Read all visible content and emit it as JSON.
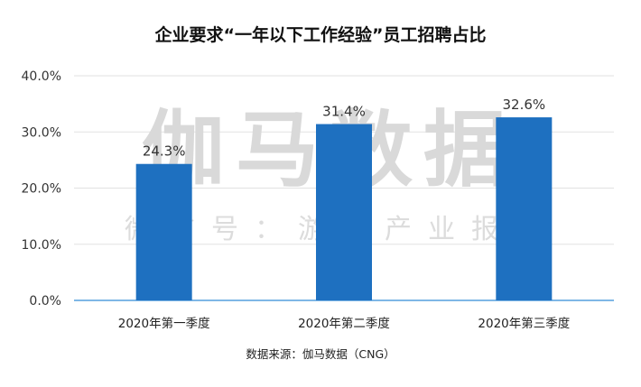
{
  "chart_data": {
    "type": "bar",
    "title": "企业要求“一年以下工作经验”员工招聘占比",
    "categories": [
      "2020年第一季度",
      "2020年第二季度",
      "2020年第三季度"
    ],
    "values": [
      24.3,
      31.4,
      32.6
    ],
    "value_labels": [
      "24.3%",
      "31.4%",
      "32.6%"
    ],
    "ylim": [
      0,
      40
    ],
    "y_ticks": [
      0,
      10,
      20,
      30,
      40
    ],
    "y_tick_labels": [
      "0.0%",
      "10.0%",
      "20.0%",
      "30.0%",
      "40.0%"
    ],
    "grid": true,
    "bar_color": "#1e70c0",
    "source": "数据来源：伽马数据（CNG）"
  },
  "watermark": {
    "main": "伽马数据",
    "sub": "微信号：游戏产业报告"
  }
}
